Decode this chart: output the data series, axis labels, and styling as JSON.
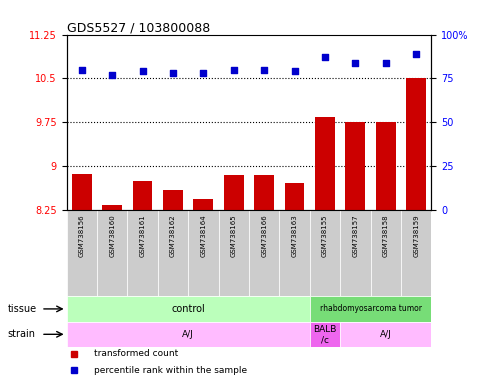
{
  "title": "GDS5527 / 103800088",
  "samples": [
    "GSM738156",
    "GSM738160",
    "GSM738161",
    "GSM738162",
    "GSM738164",
    "GSM738165",
    "GSM738166",
    "GSM738163",
    "GSM738155",
    "GSM738157",
    "GSM738158",
    "GSM738159"
  ],
  "bar_values": [
    8.87,
    8.34,
    8.75,
    8.6,
    8.45,
    8.85,
    8.85,
    8.72,
    9.85,
    9.75,
    9.75,
    10.5
  ],
  "dot_values": [
    80,
    77,
    79,
    78,
    78,
    80,
    80,
    79,
    87,
    84,
    84,
    89
  ],
  "ylim_left": [
    8.25,
    11.25
  ],
  "ylim_right": [
    0,
    100
  ],
  "yticks_left": [
    8.25,
    9.0,
    9.75,
    10.5,
    11.25
  ],
  "yticks_right": [
    0,
    25,
    50,
    75,
    100
  ],
  "ytick_labels_left": [
    "8.25",
    "9",
    "9.75",
    "10.5",
    "11.25"
  ],
  "ytick_labels_right": [
    "0",
    "25",
    "50",
    "75",
    "100%"
  ],
  "hlines": [
    9.0,
    9.75,
    10.5
  ],
  "bar_color": "#cc0000",
  "dot_color": "#0000cc",
  "tissue_groups": [
    {
      "label": "control",
      "start": 0,
      "end": 8,
      "color": "#bbffbb"
    },
    {
      "label": "rhabdomyosarcoma tumor",
      "start": 8,
      "end": 12,
      "color": "#77dd77"
    }
  ],
  "strain_groups": [
    {
      "label": "A/J",
      "start": 0,
      "end": 8,
      "color": "#ffbbff"
    },
    {
      "label": "BALB\n/c",
      "start": 8,
      "end": 9,
      "color": "#ee66ee"
    },
    {
      "label": "A/J",
      "start": 9,
      "end": 12,
      "color": "#ffbbff"
    }
  ],
  "tissue_row_label": "tissue",
  "strain_row_label": "strain",
  "bar_bottom": 8.25,
  "sample_cell_color": "#cccccc",
  "legend_items": [
    {
      "label": "transformed count",
      "color": "#cc0000"
    },
    {
      "label": "percentile rank within the sample",
      "color": "#0000cc"
    }
  ]
}
